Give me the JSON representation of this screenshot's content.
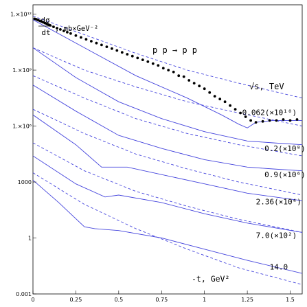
{
  "chart_data": {
    "type": "line",
    "title": "",
    "xlabel": "-t, GeV²",
    "ylabel_numerator": "dσ",
    "ylabel_denominator": "dt",
    "ylabel_unit": ", mb×GeV⁻²",
    "process": "p p → p p",
    "energy_header": "√s, TeV",
    "x_range": [
      0,
      1.57
    ],
    "y_log_range": [
      -3,
      12.5
    ],
    "log_scale_y": true,
    "grid": false,
    "x_ticks": [
      {
        "value": 0,
        "label": "0"
      },
      {
        "value": 0.25,
        "label": "0.25"
      },
      {
        "value": 0.5,
        "label": "0.5"
      },
      {
        "value": 0.75,
        "label": "0.75"
      },
      {
        "value": 1,
        "label": "1"
      },
      {
        "value": 1.25,
        "label": "1.25"
      },
      {
        "value": 1.5,
        "label": "1.5"
      }
    ],
    "y_ticks": [
      {
        "log": 12,
        "label": "1.×10¹²"
      },
      {
        "log": 9,
        "label": "1.×10⁹"
      },
      {
        "log": 6,
        "label": "1.×10⁶"
      },
      {
        "log": 3,
        "label": "1000"
      },
      {
        "log": 0,
        "label": "1"
      },
      {
        "log": -3,
        "label": "0.001"
      }
    ],
    "energy_labels": [
      {
        "text": "0.062(×10¹⁰)",
        "x": 1.22,
        "log": 6.6
      },
      {
        "text": "0.2(×10⁸)",
        "x": 1.35,
        "log": 4.65
      },
      {
        "text": "0.9(×10⁶)",
        "x": 1.35,
        "log": 3.25
      },
      {
        "text": "2.36(×10⁴)",
        "x": 1.3,
        "log": 1.8
      },
      {
        "text": "7.0(×10²)",
        "x": 1.3,
        "log": 0.0
      },
      {
        "text": "14.0",
        "x": 1.38,
        "log": -1.7
      }
    ],
    "series": [
      {
        "style": "solid",
        "x": [
          0,
          0.3,
          0.6,
          0.9,
          1.1,
          1.2,
          1.25,
          1.3,
          1.4,
          1.5,
          1.57
        ],
        "log": [
          11.7,
          10.2,
          8.7,
          7.5,
          6.6,
          6.1,
          5.9,
          6.2,
          6.3,
          6.3,
          6.3
        ]
      },
      {
        "style": "dashed",
        "x": [
          0,
          0.3,
          0.6,
          0.9,
          1.2,
          1.57
        ],
        "log": [
          11.9,
          10.9,
          9.9,
          9.0,
          8.3,
          7.5
        ]
      },
      {
        "style": "solid",
        "x": [
          0,
          0.25,
          0.5,
          0.75,
          1.0,
          1.25,
          1.4,
          1.57
        ],
        "log": [
          10.2,
          8.6,
          7.3,
          6.4,
          5.7,
          5.2,
          5.1,
          5.0
        ]
      },
      {
        "style": "dashed",
        "x": [
          0,
          0.3,
          0.6,
          0.9,
          1.2,
          1.57
        ],
        "log": [
          10.2,
          9.0,
          8.1,
          7.3,
          6.7,
          6.0
        ]
      },
      {
        "style": "solid",
        "x": [
          0,
          0.25,
          0.5,
          0.75,
          1.0,
          1.25,
          1.4,
          1.57
        ],
        "log": [
          8.2,
          6.8,
          5.5,
          4.8,
          4.2,
          3.8,
          3.7,
          3.6
        ]
      },
      {
        "style": "dashed",
        "x": [
          0,
          0.3,
          0.6,
          0.9,
          1.2,
          1.57
        ],
        "log": [
          8.7,
          7.5,
          6.4,
          5.6,
          5.0,
          4.4
        ]
      },
      {
        "style": "solid",
        "x": [
          0,
          0.25,
          0.4,
          0.55,
          0.75,
          1.0,
          1.25,
          1.57
        ],
        "log": [
          6.6,
          5.0,
          3.8,
          3.8,
          3.4,
          2.9,
          2.4,
          2.0
        ]
      },
      {
        "style": "dashed",
        "x": [
          0,
          0.3,
          0.6,
          0.9,
          1.2,
          1.57
        ],
        "log": [
          6.9,
          5.6,
          4.5,
          3.7,
          3.0,
          2.3
        ]
      },
      {
        "style": "solid",
        "x": [
          0,
          0.25,
          0.42,
          0.5,
          0.75,
          1.0,
          1.25,
          1.57
        ],
        "log": [
          4.4,
          2.9,
          2.2,
          2.3,
          1.9,
          1.3,
          0.8,
          0.3
        ]
      },
      {
        "style": "dashed",
        "x": [
          0,
          0.3,
          0.6,
          0.9,
          1.2,
          1.57
        ],
        "log": [
          5.1,
          3.6,
          2.5,
          1.7,
          1.0,
          0.3
        ]
      },
      {
        "style": "solid",
        "x": [
          0,
          0.15,
          0.3,
          0.36,
          0.5,
          0.75,
          1.0,
          1.25,
          1.57
        ],
        "log": [
          3.1,
          1.9,
          0.6,
          0.5,
          0.4,
          0.0,
          -0.6,
          -1.2,
          -1.9
        ]
      },
      {
        "style": "dashed",
        "x": [
          0,
          0.3,
          0.6,
          0.9,
          1.2,
          1.57
        ],
        "log": [
          3.5,
          1.8,
          0.5,
          -0.6,
          -1.6,
          -2.5
        ]
      }
    ],
    "data_points": {
      "x": [
        0.01,
        0.02,
        0.03,
        0.04,
        0.05,
        0.06,
        0.07,
        0.08,
        0.09,
        0.1,
        0.12,
        0.14,
        0.16,
        0.18,
        0.2,
        0.22,
        0.25,
        0.28,
        0.31,
        0.34,
        0.37,
        0.4,
        0.43,
        0.46,
        0.49,
        0.52,
        0.55,
        0.58,
        0.61,
        0.64,
        0.67,
        0.7,
        0.73,
        0.76,
        0.79,
        0.82,
        0.85,
        0.88,
        0.91,
        0.94,
        0.97,
        1.0,
        1.03,
        1.06,
        1.09,
        1.12,
        1.15,
        1.18,
        1.21,
        1.24,
        1.27,
        1.3,
        1.34,
        1.38,
        1.42,
        1.46,
        1.5,
        1.54
      ],
      "log": [
        11.75,
        11.72,
        11.68,
        11.64,
        11.6,
        11.56,
        11.52,
        11.48,
        11.44,
        11.4,
        11.32,
        11.25,
        11.18,
        11.1,
        11.03,
        10.96,
        10.85,
        10.75,
        10.65,
        10.55,
        10.45,
        10.35,
        10.25,
        10.15,
        10.05,
        9.95,
        9.85,
        9.75,
        9.65,
        9.55,
        9.45,
        9.35,
        9.25,
        9.1,
        9.0,
        8.9,
        8.7,
        8.65,
        8.45,
        8.3,
        8.15,
        8.0,
        7.8,
        7.6,
        7.45,
        7.3,
        7.1,
        6.9,
        6.7,
        6.5,
        6.3,
        6.2,
        6.25,
        6.3,
        6.3,
        6.35,
        6.3,
        6.35
      ]
    },
    "colors": {
      "curve": "#4444dd",
      "points": "#000000",
      "axis": "#000000"
    }
  }
}
